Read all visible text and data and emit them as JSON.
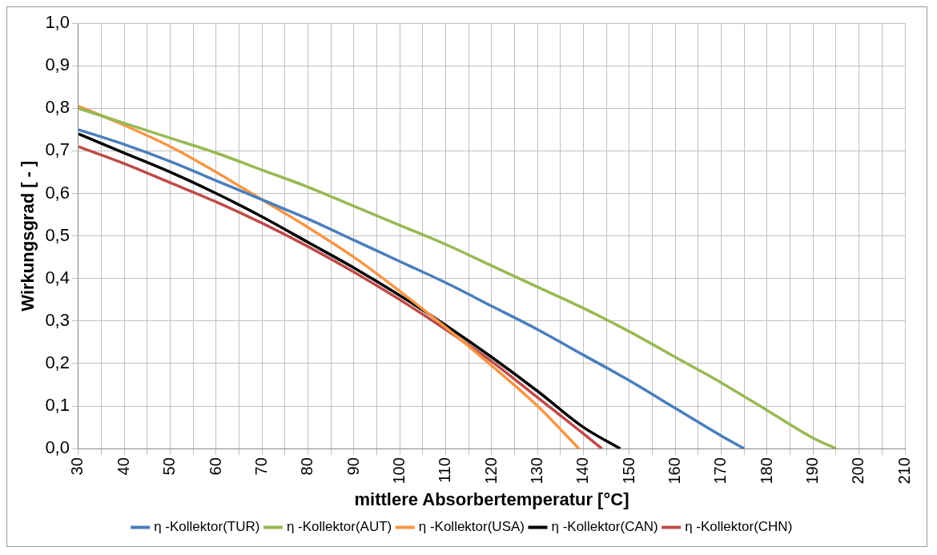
{
  "chart_data": {
    "type": "line",
    "xlabel": "mittlere Absorbertemperatur [°C]",
    "ylabel": "Wirkungsgrad [ - ]",
    "xlim": [
      30,
      210
    ],
    "xticks": [
      30,
      {
        "value": 35,
        "label": null
      },
      40,
      {
        "value": 45,
        "label": null
      },
      50,
      {
        "value": 55,
        "label": null
      },
      60,
      {
        "value": 65,
        "label": null
      },
      70,
      {
        "value": 75,
        "label": null
      },
      80,
      {
        "value": 85,
        "label": null
      },
      90,
      {
        "value": 95,
        "label": null
      },
      100,
      {
        "value": 105,
        "label": null
      },
      110,
      {
        "value": 115,
        "label": null
      },
      120,
      {
        "value": 125,
        "label": null
      },
      130,
      {
        "value": 135,
        "label": null
      },
      140,
      {
        "value": 145,
        "label": null
      },
      150,
      {
        "value": 155,
        "label": null
      },
      160,
      {
        "value": 165,
        "label": null
      },
      170,
      {
        "value": 175,
        "label": null
      },
      180,
      {
        "value": 185,
        "label": null
      },
      190,
      {
        "value": 195,
        "label": null
      },
      200,
      {
        "value": 205,
        "label": null
      },
      210
    ],
    "ylim": [
      0,
      1
    ],
    "yticks": [
      {
        "value": 0,
        "label": "0,0"
      },
      {
        "value": 0.1,
        "label": "0,1"
      },
      {
        "value": 0.2,
        "label": "0,2"
      },
      {
        "value": 0.3,
        "label": "0,3"
      },
      {
        "value": 0.4,
        "label": "0,4"
      },
      {
        "value": 0.5,
        "label": "0,5"
      },
      {
        "value": 0.6,
        "label": "0,6"
      },
      {
        "value": 0.7,
        "label": "0,7"
      },
      {
        "value": 0.8,
        "label": "0,8"
      },
      {
        "value": 0.9,
        "label": "0,9"
      },
      {
        "value": 1,
        "label": "1,0"
      }
    ],
    "grid": true,
    "legend": "bottom",
    "marker": "none",
    "line_style": "solid",
    "series": [
      {
        "name": "η -Kollektor(TUR)",
        "color": "#4a7ebb",
        "x": [
          30,
          40,
          50,
          60,
          70,
          80,
          90,
          100,
          110,
          120,
          130,
          140,
          150,
          160,
          170,
          175
        ],
        "values": [
          0.75,
          0.715,
          0.675,
          0.63,
          0.585,
          0.54,
          0.49,
          0.44,
          0.39,
          0.335,
          0.28,
          0.22,
          0.16,
          0.095,
          0.03,
          0
        ]
      },
      {
        "name": "η -Kollektor(AUT)",
        "color": "#98b954",
        "x": [
          30,
          40,
          50,
          60,
          70,
          80,
          90,
          100,
          110,
          120,
          130,
          140,
          150,
          160,
          170,
          180,
          190,
          195
        ],
        "values": [
          0.8,
          0.765,
          0.73,
          0.695,
          0.655,
          0.615,
          0.57,
          0.525,
          0.48,
          0.43,
          0.38,
          0.33,
          0.275,
          0.215,
          0.155,
          0.09,
          0.025,
          0
        ]
      },
      {
        "name": "η -Kollektor(USA)",
        "color": "#f79646",
        "x": [
          30,
          40,
          50,
          60,
          70,
          80,
          90,
          100,
          110,
          120,
          130,
          139
        ],
        "values": [
          0.805,
          0.76,
          0.71,
          0.65,
          0.585,
          0.52,
          0.45,
          0.37,
          0.285,
          0.195,
          0.1,
          0
        ]
      },
      {
        "name": "η -Kollektor(CAN)",
        "color": "#000000",
        "x": [
          30,
          40,
          50,
          60,
          70,
          80,
          90,
          100,
          110,
          120,
          130,
          140,
          148
        ],
        "values": [
          0.74,
          0.695,
          0.65,
          0.6,
          0.545,
          0.485,
          0.425,
          0.36,
          0.29,
          0.215,
          0.135,
          0.05,
          0
        ]
      },
      {
        "name": "η -Kollektor(CHN)",
        "color": "#be4b48",
        "x": [
          30,
          40,
          50,
          60,
          70,
          80,
          90,
          100,
          110,
          120,
          130,
          140,
          144
        ],
        "values": [
          0.71,
          0.67,
          0.625,
          0.58,
          0.53,
          0.475,
          0.415,
          0.35,
          0.28,
          0.205,
          0.12,
          0.035,
          0
        ]
      }
    ]
  }
}
